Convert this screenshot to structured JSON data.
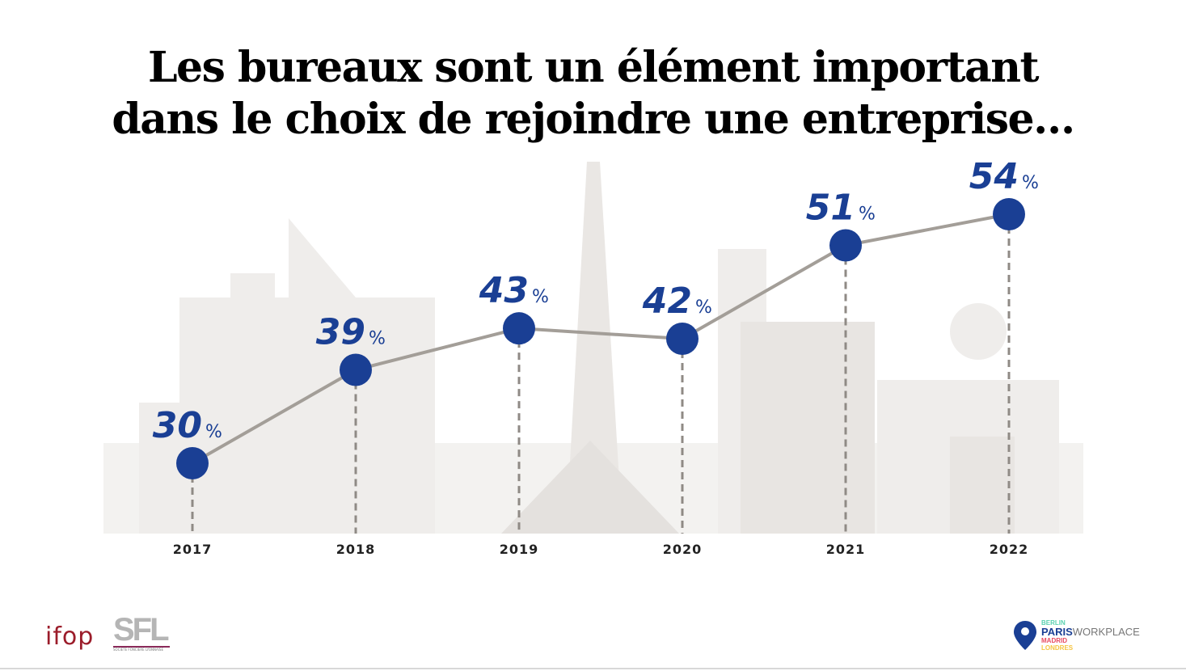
{
  "chart_data": {
    "type": "line",
    "title": "Les bureaux sont un élément important dans le choix de rejoindre une entreprise…",
    "title_lines": [
      "Les bureaux sont un élément important",
      "dans le choix de rejoindre une entreprise…"
    ],
    "categories": [
      "2017",
      "2018",
      "2019",
      "2020",
      "2021",
      "2022"
    ],
    "values": [
      30,
      39,
      43,
      42,
      51,
      54
    ],
    "unit": "%",
    "labels": [
      "30",
      "39",
      "43",
      "42",
      "51",
      "54"
    ],
    "xlabel": "",
    "ylabel": "",
    "grid": false,
    "colors": {
      "point": "#1a3f94",
      "line": "#a39e98",
      "label": "#1a3f94",
      "drop_line": "#8f8a85"
    }
  },
  "footer": {
    "logos": {
      "ifop": "ifop",
      "sfl": "SFL",
      "sfl_sub": "SOCIETE FONCIERE LYONNAISE",
      "workplace": {
        "berlin": "BERLIN",
        "paris": "PARIS",
        "workplace": "WORKPLACE",
        "madrid": "MADRID",
        "londres": "LONDRES"
      }
    }
  }
}
